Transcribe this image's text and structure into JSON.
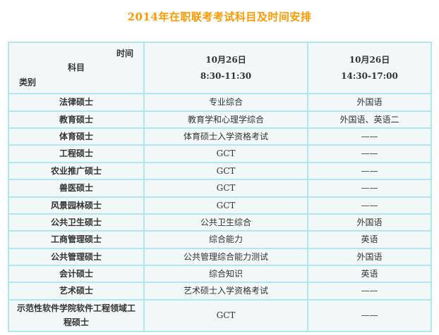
{
  "page": {
    "title": "2014年在职联考考试科目及时间安排"
  },
  "colors": {
    "title": "#FF9900",
    "border": "#B2E6EE",
    "cell_bg": "#F2F7F7",
    "text": "#333333",
    "page_bg": "#FFFFFF"
  },
  "table": {
    "corner": {
      "time_label": "时间",
      "subject_label": "科目",
      "category_label": "类别"
    },
    "columns": [
      {
        "date": "10月26日",
        "time": "8:30-11:30"
      },
      {
        "date": "10月26日",
        "time": "14:30-17:00"
      }
    ],
    "rows": [
      {
        "category": "法律硕士",
        "morning": "专业综合",
        "afternoon": "外国语"
      },
      {
        "category": "教育硕士",
        "morning": "教育学和心理学综合",
        "afternoon": "外国语、英语二"
      },
      {
        "category": "体育硕士",
        "morning": "体育硕士入学资格考试",
        "afternoon": "——"
      },
      {
        "category": "工程硕士",
        "morning": "GCT",
        "afternoon": "——"
      },
      {
        "category": "农业推广硕士",
        "morning": "GCT",
        "afternoon": "——"
      },
      {
        "category": "兽医硕士",
        "morning": "GCT",
        "afternoon": "——"
      },
      {
        "category": "风景园林硕士",
        "morning": "GCT",
        "afternoon": "——"
      },
      {
        "category": "公共卫生硕士",
        "morning": "公共卫生综合",
        "afternoon": "外国语"
      },
      {
        "category": "工商管理硕士",
        "morning": "综合能力",
        "afternoon": "英语"
      },
      {
        "category": "公共管理硕士",
        "morning": "公共管理综合能力测试",
        "afternoon": "外国语"
      },
      {
        "category": "会计硕士",
        "morning": "综合知识",
        "afternoon": "英语"
      },
      {
        "category": "艺术硕士",
        "morning": "艺术硕士入学资格考试",
        "afternoon": "——"
      },
      {
        "category": "示范性软件学院软件工程领域工程硕士",
        "morning": "GCT",
        "afternoon": "——"
      }
    ]
  }
}
